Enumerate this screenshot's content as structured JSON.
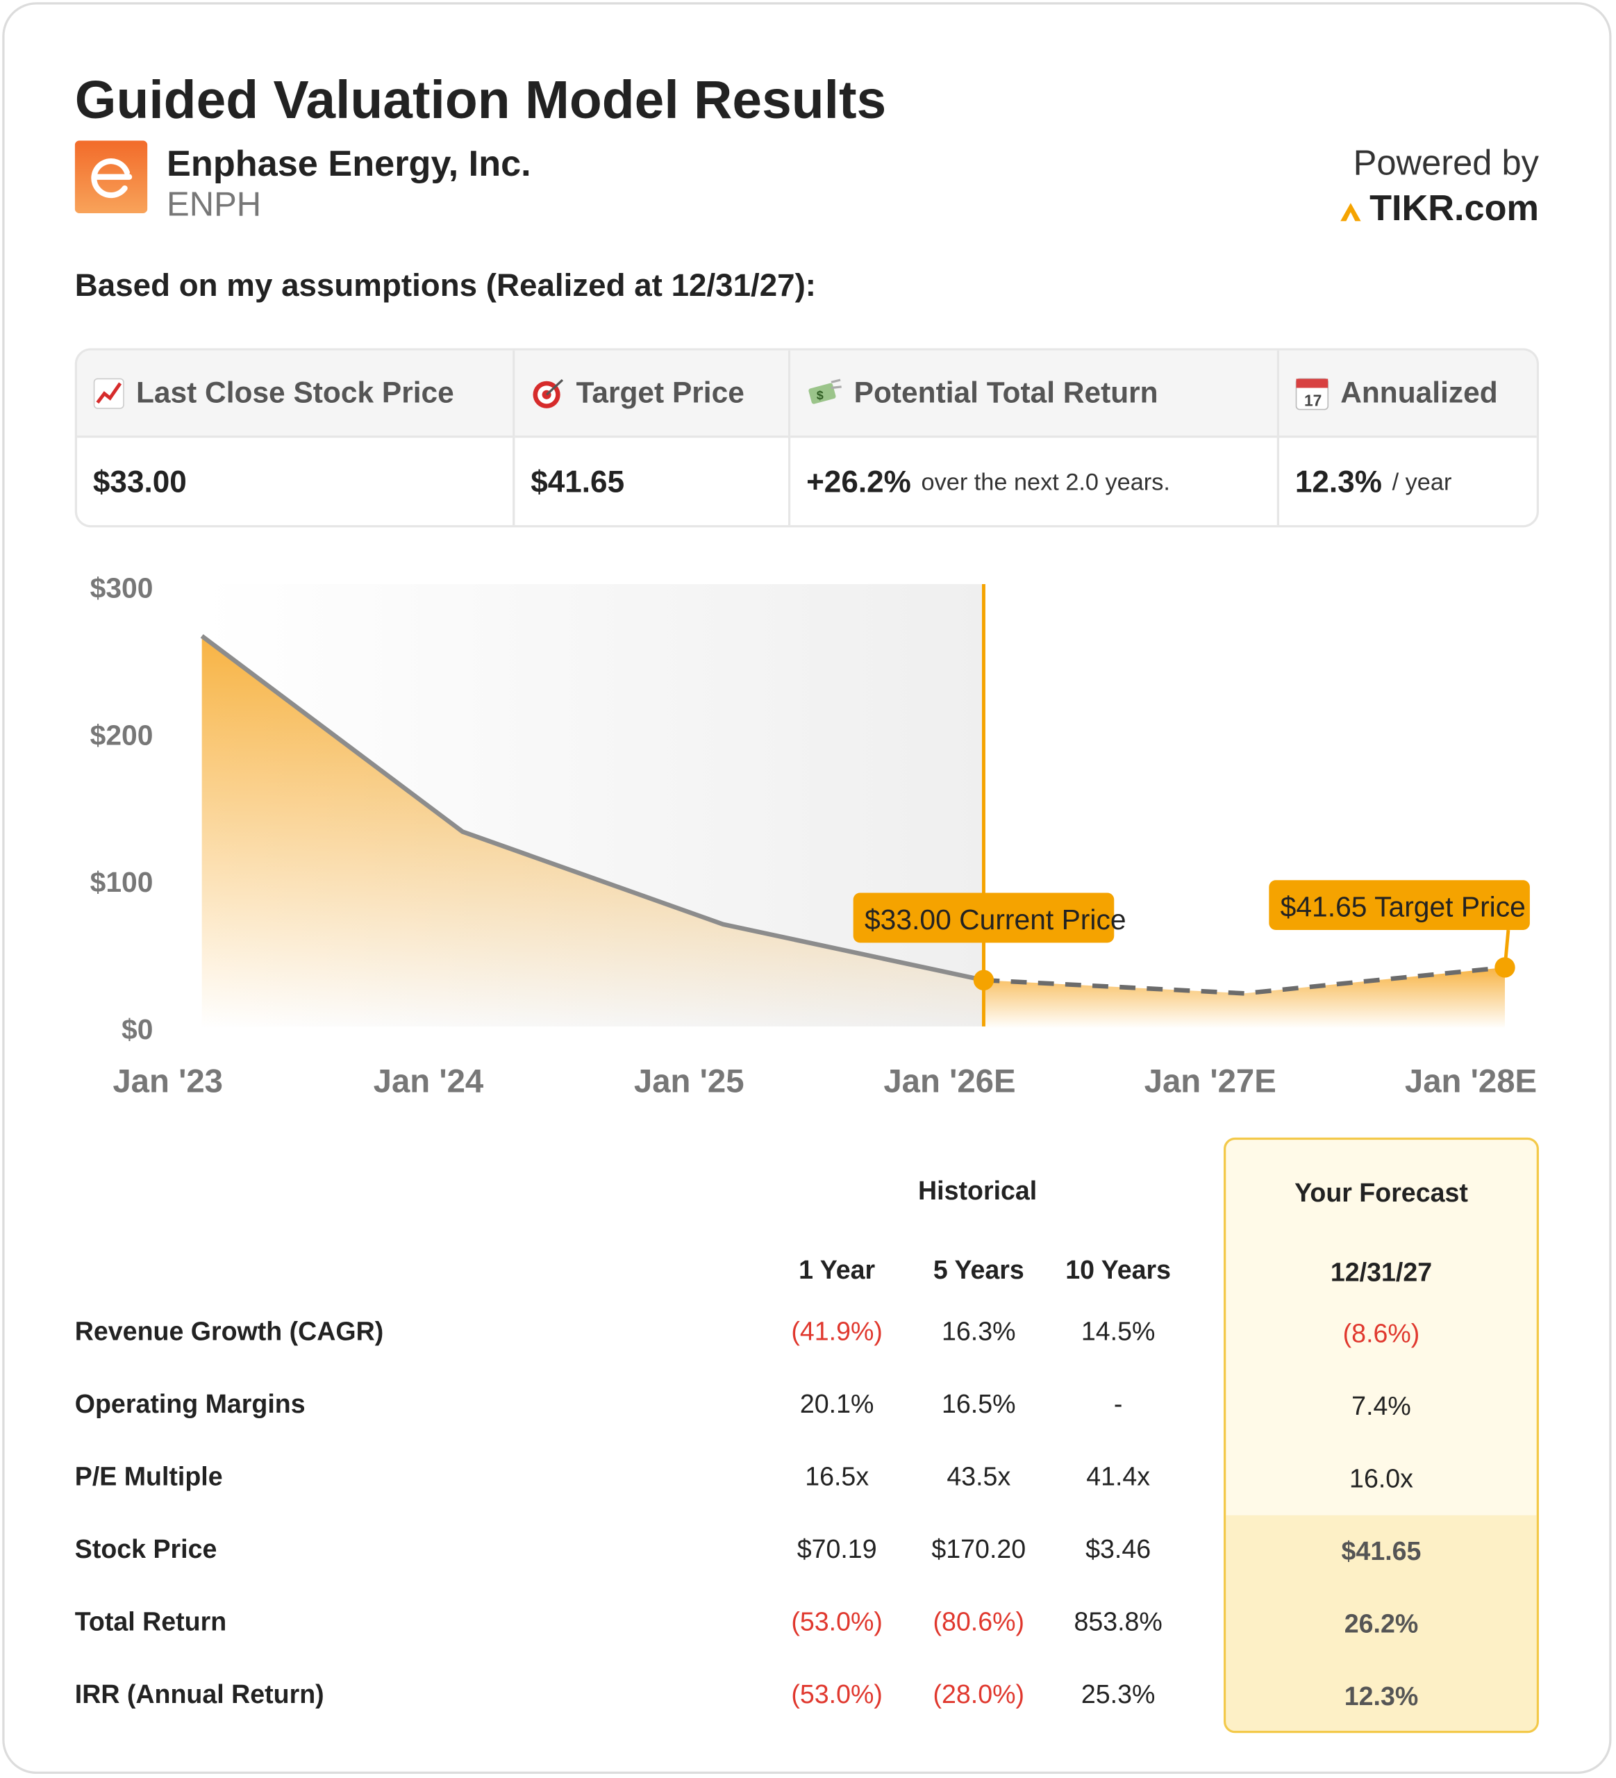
{
  "header": {
    "title": "Guided Valuation Model Results",
    "company": "Enphase Energy, Inc.",
    "ticker": "ENPH",
    "powered_by": "Powered by",
    "brand": "TIKR.com"
  },
  "assumptions": "Based on my assumptions (Realized at 12/31/27):",
  "summary": {
    "headers": [
      "Last Close Stock Price",
      "Target Price",
      "Potential Total Return",
      "Annualized"
    ],
    "values": [
      "$33.00",
      "$41.65",
      "+26.2%",
      "12.3%"
    ],
    "notes": [
      "over the next 2.0 years.",
      "/ year"
    ]
  },
  "chart_data": {
    "type": "line",
    "categories": [
      "Jan '23",
      "Jan '24",
      "Jan '25",
      "Jan '26E",
      "Jan '27E",
      "Jan '28E"
    ],
    "series": [
      {
        "name": "Historical",
        "color": "#8c8c8c",
        "values": [
          267,
          134,
          71,
          33,
          null,
          null
        ]
      },
      {
        "name": "Forecast",
        "color": "#6b6b6b",
        "dashed": true,
        "values": [
          null,
          null,
          null,
          33,
          24,
          41.65
        ]
      }
    ],
    "area_color": "#f6a623",
    "marker_color": "#f5a300",
    "ylim": [
      0,
      300
    ],
    "yticks": [
      {
        "value": 0,
        "label": "$0"
      },
      {
        "value": 100,
        "label": "$100"
      },
      {
        "value": 200,
        "label": "$200"
      },
      {
        "value": 300,
        "label": "$300"
      }
    ],
    "annotations": [
      {
        "text": "$33.00 Current Price",
        "x": "Jan '26E",
        "y": 33
      },
      {
        "text": "$41.65 Target Price",
        "x": "Jan '28E",
        "y": 41.65
      }
    ]
  },
  "table": {
    "historical": "Historical",
    "forecast": "Your Forecast",
    "columns": [
      "1 Year",
      "5 Years",
      "10 Years",
      "12/31/27"
    ],
    "rows": [
      {
        "label": "Revenue Growth (CAGR)",
        "values": [
          "(41.9%)",
          "16.3%",
          "14.5%",
          "(8.6%)"
        ]
      },
      {
        "label": "Operating Margins",
        "values": [
          "20.1%",
          "16.5%",
          "-",
          "7.4%"
        ]
      },
      {
        "label": "P/E Multiple",
        "values": [
          "16.5x",
          "43.5x",
          "41.4x",
          "16.0x"
        ]
      },
      {
        "label": "Stock Price",
        "values": [
          "$70.19",
          "$170.20",
          "$3.46",
          "$41.65"
        ]
      },
      {
        "label": "Total Return",
        "values": [
          "(53.0%)",
          "(80.6%)",
          "853.8%",
          "26.2%"
        ]
      },
      {
        "label": "IRR (Annual Return)",
        "values": [
          "(53.0%)",
          "(28.0%)",
          "25.3%",
          "12.3%"
        ]
      }
    ]
  }
}
